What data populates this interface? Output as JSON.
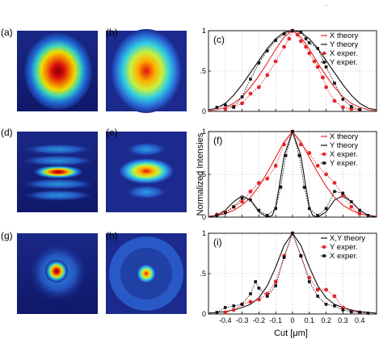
{
  "header_fragment": "...",
  "image_panels": [
    {
      "label": "(a)",
      "kind": "experiment",
      "shape": "spot"
    },
    {
      "label": "(b)",
      "kind": "theory",
      "shape": "ellipse"
    },
    {
      "label": "(d)",
      "kind": "experiment",
      "shape": "fringes"
    },
    {
      "label": "(e)",
      "kind": "theory",
      "shape": "fringes"
    },
    {
      "label": "(g)",
      "kind": "experiment",
      "shape": "ring"
    },
    {
      "label": "(h)",
      "kind": "theory",
      "shape": "ring"
    }
  ],
  "colors": {
    "x": "#e5262b",
    "y": "#111111"
  },
  "shared_ylabel": "Normalized Intensies",
  "shared_xlabel": "Cut [μm]",
  "chart_data": [
    {
      "label": "(c)",
      "type": "line",
      "xlim": [
        -0.5,
        0.5
      ],
      "ylim": [
        0,
        1
      ],
      "yticks": [
        "0",
        ".5",
        "1"
      ],
      "xticks": [
        "-0.4",
        "-0.3",
        "-0.2",
        "-0.1",
        "0",
        "0.1",
        "0.2",
        "0.3",
        "0.4"
      ],
      "legend": [
        "X theory",
        "Y theory",
        "X exper.",
        "Y exper."
      ],
      "series": [
        {
          "name": "X theory",
          "color": "red",
          "style": "solid",
          "x": [
            -0.5,
            -0.45,
            -0.4,
            -0.35,
            -0.3,
            -0.25,
            -0.2,
            -0.15,
            -0.1,
            -0.05,
            0,
            0.05,
            0.1,
            0.15,
            0.2,
            0.25,
            0.3,
            0.35,
            0.4,
            0.45,
            0.5
          ],
          "y": [
            0.01,
            0.02,
            0.05,
            0.1,
            0.18,
            0.3,
            0.44,
            0.6,
            0.77,
            0.92,
            1,
            0.92,
            0.77,
            0.6,
            0.44,
            0.3,
            0.18,
            0.1,
            0.05,
            0.02,
            0.01
          ]
        },
        {
          "name": "Y theory",
          "color": "black",
          "style": "solid",
          "x": [
            -0.5,
            -0.45,
            -0.4,
            -0.35,
            -0.3,
            -0.25,
            -0.2,
            -0.15,
            -0.1,
            -0.05,
            0,
            0.05,
            0.1,
            0.15,
            0.2,
            0.25,
            0.3,
            0.35,
            0.4,
            0.45,
            0.5
          ],
          "y": [
            0.02,
            0.04,
            0.1,
            0.2,
            0.33,
            0.48,
            0.63,
            0.78,
            0.9,
            0.98,
            1,
            0.98,
            0.9,
            0.78,
            0.63,
            0.48,
            0.33,
            0.2,
            0.1,
            0.04,
            0.02
          ]
        },
        {
          "name": "X exper.",
          "color": "red",
          "style": "dotted",
          "marker": "circle",
          "x": [
            -0.4,
            -0.35,
            -0.3,
            -0.25,
            -0.2,
            -0.15,
            -0.1,
            -0.05,
            -0.02,
            0,
            0.03,
            0.05,
            0.08,
            0.1,
            0.13,
            0.15,
            0.18,
            0.2,
            0.25,
            0.3,
            0.35,
            0.4
          ],
          "y": [
            0.03,
            0.06,
            0.1,
            0.22,
            0.3,
            0.45,
            0.62,
            0.8,
            0.9,
            1,
            0.95,
            0.87,
            0.8,
            0.72,
            0.62,
            0.55,
            0.42,
            0.3,
            0.13,
            0.05,
            0.03,
            0.02
          ]
        },
        {
          "name": "Y exper.",
          "color": "black",
          "style": "dotted",
          "marker": "square",
          "x": [
            -0.45,
            -0.4,
            -0.35,
            -0.3,
            -0.25,
            -0.2,
            -0.15,
            -0.1,
            -0.05,
            0,
            0.05,
            0.08,
            0.1,
            0.15,
            0.2,
            0.25,
            0.3,
            0.35,
            0.4
          ],
          "y": [
            0.05,
            0.08,
            0.05,
            0.18,
            0.4,
            0.6,
            0.75,
            0.88,
            0.96,
            1,
            0.98,
            0.9,
            0.85,
            0.78,
            0.55,
            0.35,
            0.15,
            0.06,
            0.02
          ]
        }
      ]
    },
    {
      "label": "(f)",
      "type": "line",
      "xlim": [
        -0.5,
        0.5
      ],
      "ylim": [
        0,
        1
      ],
      "yticks": [
        "0",
        ".5",
        "1"
      ],
      "xticks": [
        "-0.4",
        "-0.3",
        "-0.2",
        "-0.1",
        "0",
        "0.1",
        "0.2",
        "0.3",
        "0.4"
      ],
      "legend": [
        "X theory",
        "Y theory",
        "X exper.",
        "Y exper."
      ],
      "series": [
        {
          "name": "X theory",
          "color": "red",
          "style": "solid",
          "x": [
            -0.5,
            -0.45,
            -0.4,
            -0.35,
            -0.3,
            -0.25,
            -0.2,
            -0.15,
            -0.1,
            -0.05,
            0,
            0.05,
            0.1,
            0.15,
            0.2,
            0.25,
            0.3,
            0.35,
            0.4,
            0.45,
            0.5
          ],
          "y": [
            0.01,
            0.02,
            0.04,
            0.08,
            0.14,
            0.23,
            0.36,
            0.52,
            0.7,
            0.88,
            1,
            0.88,
            0.7,
            0.52,
            0.36,
            0.23,
            0.14,
            0.08,
            0.04,
            0.02,
            0.01
          ]
        },
        {
          "name": "Y theory",
          "color": "black",
          "style": "solid",
          "x": [
            -0.5,
            -0.45,
            -0.4,
            -0.35,
            -0.3,
            -0.25,
            -0.2,
            -0.15,
            -0.12,
            -0.1,
            -0.08,
            -0.05,
            0,
            0.05,
            0.08,
            0.1,
            0.12,
            0.15,
            0.2,
            0.25,
            0.3,
            0.35,
            0.4,
            0.45,
            0.5
          ],
          "y": [
            0.0,
            0.02,
            0.08,
            0.18,
            0.25,
            0.2,
            0.06,
            0.0,
            0.02,
            0.12,
            0.35,
            0.72,
            1,
            0.72,
            0.35,
            0.12,
            0.02,
            0.0,
            0.06,
            0.2,
            0.25,
            0.18,
            0.08,
            0.02,
            0.0
          ]
        },
        {
          "name": "X exper.",
          "color": "red",
          "style": "dotted",
          "marker": "circle",
          "x": [
            -0.45,
            -0.4,
            -0.35,
            -0.3,
            -0.25,
            -0.2,
            -0.15,
            -0.1,
            -0.05,
            0,
            0.05,
            0.1,
            0.15,
            0.2,
            0.25,
            0.3,
            0.35,
            0.4
          ],
          "y": [
            0.03,
            0.06,
            0.12,
            0.18,
            0.3,
            0.4,
            0.45,
            0.6,
            0.85,
            1,
            0.85,
            0.75,
            0.6,
            0.5,
            0.4,
            0.25,
            0.12,
            0.04
          ]
        },
        {
          "name": "Y exper.",
          "color": "black",
          "style": "dotted",
          "marker": "square",
          "x": [
            -0.45,
            -0.4,
            -0.35,
            -0.3,
            -0.25,
            -0.2,
            -0.15,
            -0.1,
            -0.07,
            -0.04,
            0,
            0.04,
            0.07,
            0.1,
            0.15,
            0.2,
            0.25,
            0.3,
            0.35,
            0.4,
            0.45
          ],
          "y": [
            0.02,
            0.05,
            0.12,
            0.22,
            0.2,
            0.08,
            0.02,
            0.1,
            0.35,
            0.72,
            1,
            0.72,
            0.35,
            0.1,
            0.02,
            0.1,
            0.3,
            0.28,
            0.18,
            0.08,
            0.02
          ]
        }
      ]
    },
    {
      "label": "(i)",
      "type": "line",
      "xlim": [
        -0.5,
        0.5
      ],
      "ylim": [
        0,
        1
      ],
      "yticks": [
        "0",
        ".5",
        "1"
      ],
      "xticks": [
        "-0.4",
        "-0.3",
        "-0.2",
        "-0.1",
        "0",
        "0.1",
        "0.2",
        "0.3",
        "0.4"
      ],
      "legend": [
        "X,Y theory",
        "Y exper.",
        "X exper."
      ],
      "series": [
        {
          "name": "X,Y theory",
          "color": "black",
          "style": "solid",
          "x": [
            -0.5,
            -0.45,
            -0.4,
            -0.35,
            -0.3,
            -0.25,
            -0.2,
            -0.15,
            -0.1,
            -0.05,
            0,
            0.05,
            0.1,
            0.15,
            0.2,
            0.25,
            0.3,
            0.35,
            0.4,
            0.45,
            0.5
          ],
          "y": [
            0.01,
            0.02,
            0.03,
            0.05,
            0.08,
            0.12,
            0.2,
            0.35,
            0.58,
            0.85,
            1,
            0.85,
            0.58,
            0.35,
            0.2,
            0.12,
            0.08,
            0.05,
            0.03,
            0.02,
            0.01
          ]
        },
        {
          "name": "Y exper.",
          "color": "red",
          "style": "dotted",
          "marker": "circle",
          "x": [
            -0.4,
            -0.35,
            -0.3,
            -0.25,
            -0.2,
            -0.15,
            -0.1,
            -0.05,
            0,
            0.05,
            0.1,
            0.15,
            0.2,
            0.25,
            0.3,
            0.35,
            0.4
          ],
          "y": [
            0.02,
            0.05,
            0.12,
            0.15,
            0.18,
            0.25,
            0.4,
            0.72,
            1,
            0.72,
            0.45,
            0.3,
            0.3,
            0.22,
            0.08,
            0.03,
            0.02
          ]
        },
        {
          "name": "X exper.",
          "color": "black",
          "style": "dotted",
          "marker": "square",
          "x": [
            -0.45,
            -0.4,
            -0.35,
            -0.3,
            -0.25,
            -0.22,
            -0.2,
            -0.15,
            -0.1,
            -0.05,
            0,
            0.05,
            0.1,
            0.15,
            0.2,
            0.25,
            0.3,
            0.35,
            0.4,
            0.45
          ],
          "y": [
            0.02,
            0.08,
            0.1,
            0.12,
            0.25,
            0.4,
            0.32,
            0.22,
            0.35,
            0.7,
            1,
            0.72,
            0.4,
            0.22,
            0.12,
            0.1,
            0.05,
            0.03,
            0.02,
            0.01
          ]
        }
      ]
    }
  ]
}
